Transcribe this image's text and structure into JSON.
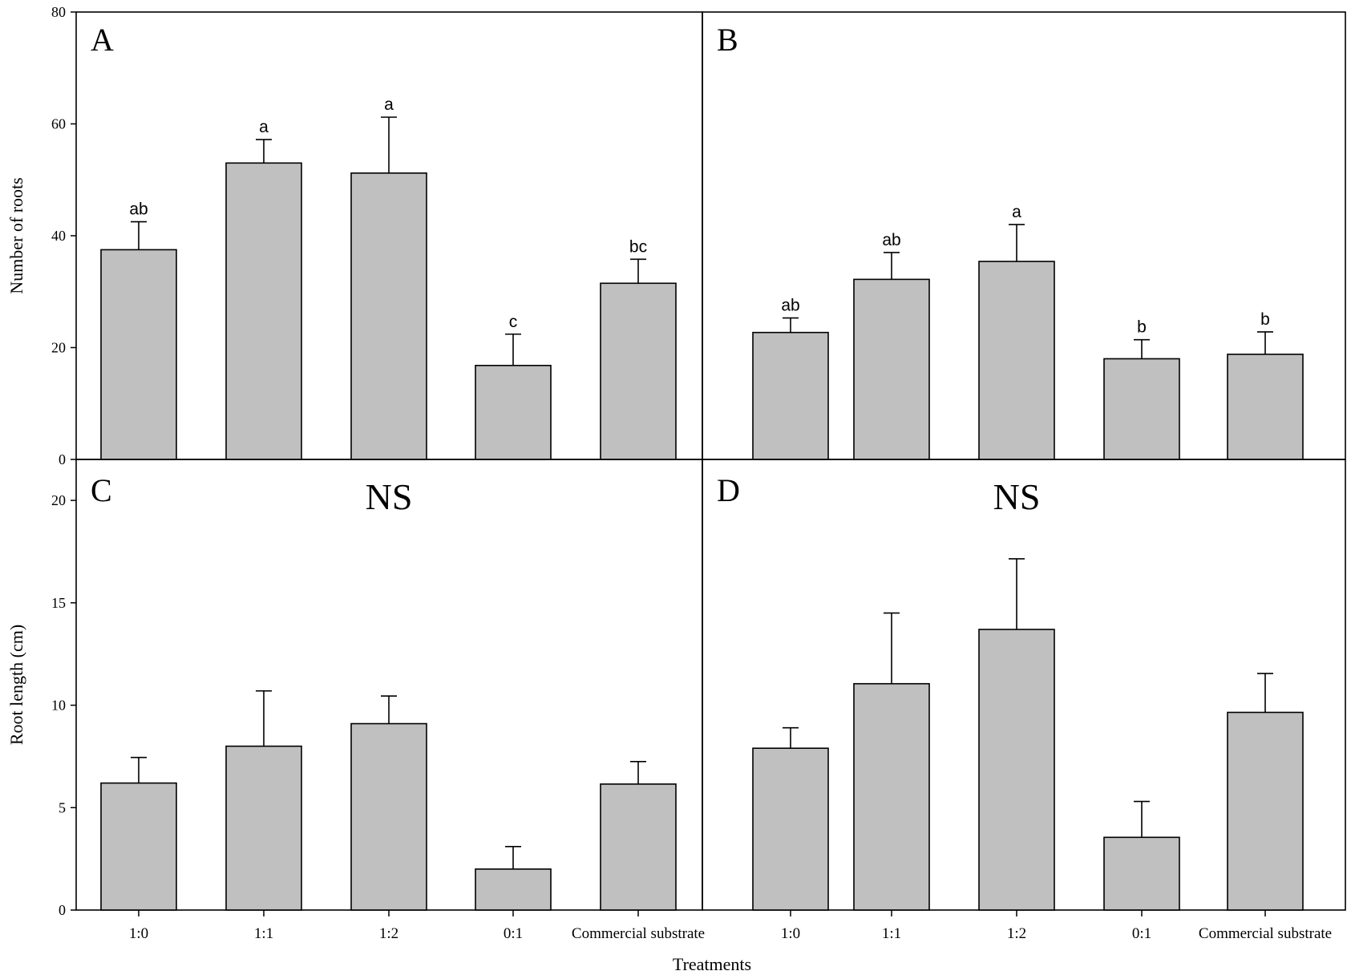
{
  "figure": {
    "x_axis_title": "Treatments",
    "colors": {
      "bar_fill": "#c0c0c0",
      "stroke": "#000000",
      "background": "#ffffff"
    }
  },
  "chart_data": [
    {
      "panel": "A",
      "type": "bar",
      "ylabel": "Number of roots",
      "ylim": [
        0,
        80
      ],
      "yticks": [
        "0",
        "20",
        "40",
        "60",
        "80"
      ],
      "categories": [
        "1:0",
        "1:1",
        "1:2",
        "0:1",
        "Commercial substrate"
      ],
      "values": [
        37.5,
        53,
        51.2,
        16.8,
        31.5
      ],
      "errors": [
        5.0,
        4.2,
        10.0,
        5.6,
        4.3
      ],
      "letters": [
        "ab",
        "a",
        "a",
        "c",
        "bc"
      ],
      "annotation": ""
    },
    {
      "panel": "B",
      "type": "bar",
      "ylabel": "",
      "ylim": [
        0,
        80
      ],
      "yticks": [],
      "categories": [
        "1:0",
        "1:1",
        "1:2",
        "0:1",
        "Commercial substrate"
      ],
      "values": [
        22.7,
        32.2,
        35.4,
        18.0,
        18.8
      ],
      "errors": [
        2.6,
        4.8,
        6.6,
        3.4,
        4.0
      ],
      "letters": [
        "ab",
        "ab",
        "a",
        "b",
        "b"
      ],
      "annotation": ""
    },
    {
      "panel": "C",
      "type": "bar",
      "ylabel": "Root length (cm)",
      "ylim": [
        0,
        22
      ],
      "yticks": [
        "0",
        "5",
        "10",
        "15",
        "20"
      ],
      "categories": [
        "1:0",
        "1:1",
        "1:2",
        "0:1",
        "Commercial substrate"
      ],
      "values": [
        6.2,
        8.0,
        9.1,
        2.0,
        6.15
      ],
      "errors": [
        1.25,
        2.7,
        1.35,
        1.1,
        1.1
      ],
      "letters": [],
      "annotation": "NS"
    },
    {
      "panel": "D",
      "type": "bar",
      "ylabel": "",
      "ylim": [
        0,
        22
      ],
      "yticks": [],
      "categories": [
        "1:0",
        "1:1",
        "1:2",
        "0:1",
        "Commercial substrate"
      ],
      "values": [
        7.9,
        11.05,
        13.7,
        3.55,
        9.65
      ],
      "errors": [
        1.0,
        3.45,
        3.45,
        1.75,
        1.9
      ],
      "letters": [],
      "annotation": "NS"
    }
  ]
}
